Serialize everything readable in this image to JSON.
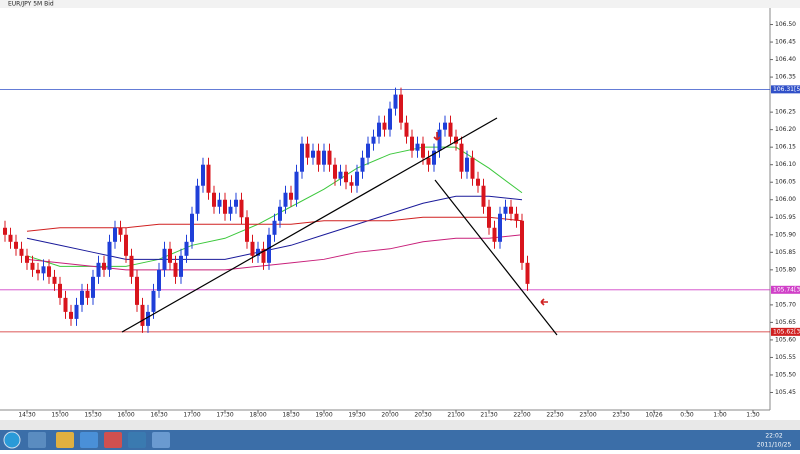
{
  "window_title": "EUR/JPY 5M Bid",
  "clock": {
    "time": "22:02",
    "date": "2011/10/25"
  },
  "chart_data": {
    "type": "candlestick",
    "up_color": "#1f3fd8",
    "down_color": "#d8141c",
    "x": [
      "14:10",
      "14:15",
      "14:20",
      "14:25",
      "14:30",
      "14:35",
      "14:40",
      "14:45",
      "14:50",
      "14:55",
      "15:00",
      "15:05",
      "15:10",
      "15:15",
      "15:20",
      "15:25",
      "15:30",
      "15:35",
      "15:40",
      "15:45",
      "15:50",
      "15:55",
      "16:00",
      "16:05",
      "16:10",
      "16:15",
      "16:20",
      "16:25",
      "16:30",
      "16:35",
      "16:40",
      "16:45",
      "16:50",
      "16:55",
      "17:00",
      "17:05",
      "17:10",
      "17:15",
      "17:20",
      "17:25",
      "17:30",
      "17:35",
      "17:40",
      "17:45",
      "17:50",
      "17:55",
      "18:00",
      "18:05",
      "18:10",
      "18:15",
      "18:20",
      "18:25",
      "18:30",
      "18:35",
      "18:40",
      "18:45",
      "18:50",
      "18:55",
      "19:00",
      "19:05",
      "19:10",
      "19:15",
      "19:20",
      "19:25",
      "19:30",
      "19:35",
      "19:40",
      "19:45",
      "19:50",
      "19:55",
      "20:00",
      "20:05",
      "20:10",
      "20:15",
      "20:20",
      "20:25",
      "20:30",
      "20:35",
      "20:40",
      "20:45",
      "20:50",
      "20:55",
      "21:00",
      "21:05",
      "21:10",
      "21:15",
      "21:20",
      "21:25",
      "21:30",
      "21:35",
      "21:40",
      "21:45",
      "21:50",
      "21:55",
      "22:00",
      "22:05"
    ],
    "open": [
      105.92,
      105.9,
      105.88,
      105.86,
      105.84,
      105.82,
      105.8,
      105.79,
      105.81,
      105.78,
      105.76,
      105.72,
      105.68,
      105.66,
      105.7,
      105.74,
      105.72,
      105.78,
      105.82,
      105.8,
      105.88,
      105.92,
      105.9,
      105.84,
      105.78,
      105.7,
      105.64,
      105.68,
      105.74,
      105.8,
      105.86,
      105.82,
      105.78,
      105.84,
      105.88,
      105.96,
      106.04,
      106.1,
      106.02,
      105.98,
      106.0,
      105.96,
      105.98,
      106.0,
      105.95,
      105.88,
      105.84,
      105.86,
      105.82,
      105.9,
      105.94,
      105.98,
      106.02,
      106.0,
      106.08,
      106.16,
      106.12,
      106.14,
      106.1,
      106.14,
      106.1,
      106.06,
      106.08,
      106.05,
      106.04,
      106.08,
      106.12,
      106.16,
      106.18,
      106.22,
      106.2,
      106.26,
      106.3,
      106.22,
      106.18,
      106.14,
      106.16,
      106.12,
      106.1,
      106.14,
      106.2,
      106.22,
      106.18,
      106.16,
      106.08,
      106.12,
      106.06,
      106.04,
      105.98,
      105.92,
      105.88,
      105.96,
      105.98,
      105.96,
      105.94,
      105.82
    ],
    "high": [
      105.94,
      105.92,
      105.9,
      105.88,
      105.86,
      105.84,
      105.82,
      105.83,
      105.83,
      105.8,
      105.78,
      105.74,
      105.7,
      105.72,
      105.76,
      105.76,
      105.8,
      105.84,
      105.84,
      105.9,
      105.94,
      105.94,
      105.92,
      105.86,
      105.8,
      105.72,
      105.7,
      105.76,
      105.82,
      105.88,
      105.88,
      105.84,
      105.86,
      105.9,
      105.98,
      106.06,
      106.12,
      106.12,
      106.04,
      106.02,
      106.02,
      106.0,
      106.02,
      106.02,
      105.97,
      105.9,
      105.88,
      105.88,
      105.92,
      105.96,
      106.0,
      106.04,
      106.04,
      106.1,
      106.18,
      106.18,
      106.16,
      106.16,
      106.16,
      106.16,
      106.12,
      106.1,
      106.1,
      106.07,
      106.1,
      106.14,
      106.18,
      106.2,
      106.24,
      106.24,
      106.28,
      106.32,
      106.32,
      106.24,
      106.2,
      106.18,
      106.18,
      106.14,
      106.16,
      106.22,
      106.24,
      106.24,
      106.2,
      106.18,
      106.14,
      106.14,
      106.08,
      106.06,
      106.0,
      105.94,
      105.98,
      106.0,
      106.0,
      105.98,
      105.96,
      105.84
    ],
    "low": [
      105.88,
      105.86,
      105.84,
      105.82,
      105.8,
      105.78,
      105.77,
      105.77,
      105.76,
      105.74,
      105.7,
      105.66,
      105.64,
      105.64,
      105.68,
      105.7,
      105.7,
      105.76,
      105.78,
      105.78,
      105.86,
      105.88,
      105.82,
      105.76,
      105.68,
      105.62,
      105.62,
      105.66,
      105.72,
      105.78,
      105.8,
      105.76,
      105.76,
      105.82,
      105.86,
      105.94,
      106.02,
      106.0,
      105.96,
      105.96,
      105.94,
      105.94,
      105.96,
      105.93,
      105.86,
      105.82,
      105.82,
      105.8,
      105.8,
      105.88,
      105.92,
      105.96,
      105.98,
      105.98,
      106.06,
      106.1,
      106.1,
      106.08,
      106.08,
      106.08,
      106.04,
      106.04,
      106.03,
      106.02,
      106.02,
      106.06,
      106.1,
      106.14,
      106.16,
      106.18,
      106.18,
      106.24,
      106.2,
      106.16,
      106.12,
      106.12,
      106.1,
      106.08,
      106.08,
      106.12,
      106.18,
      106.16,
      106.14,
      106.06,
      106.06,
      106.04,
      106.02,
      105.96,
      105.9,
      105.86,
      105.86,
      105.94,
      105.94,
      105.92,
      105.8,
      105.74
    ],
    "close": [
      105.9,
      105.88,
      105.86,
      105.84,
      105.82,
      105.8,
      105.79,
      105.81,
      105.78,
      105.76,
      105.72,
      105.68,
      105.66,
      105.7,
      105.74,
      105.72,
      105.78,
      105.82,
      105.8,
      105.88,
      105.92,
      105.9,
      105.84,
      105.78,
      105.7,
      105.64,
      105.68,
      105.74,
      105.8,
      105.86,
      105.82,
      105.78,
      105.84,
      105.88,
      105.96,
      106.04,
      106.1,
      106.02,
      105.98,
      106.0,
      105.96,
      105.98,
      106.0,
      105.95,
      105.88,
      105.84,
      105.86,
      105.82,
      105.9,
      105.94,
      105.98,
      106.02,
      106.0,
      106.08,
      106.16,
      106.12,
      106.14,
      106.1,
      106.14,
      106.1,
      106.06,
      106.08,
      106.05,
      106.04,
      106.08,
      106.12,
      106.16,
      106.18,
      106.22,
      106.2,
      106.26,
      106.3,
      106.22,
      106.18,
      106.14,
      106.16,
      106.12,
      106.1,
      106.14,
      106.2,
      106.22,
      106.18,
      106.16,
      106.08,
      106.12,
      106.06,
      106.04,
      105.98,
      105.92,
      105.88,
      105.96,
      105.98,
      105.96,
      105.94,
      105.82,
      105.76
    ],
    "indicator_x": [
      "14:30",
      "15:00",
      "15:30",
      "16:00",
      "16:30",
      "17:00",
      "17:30",
      "18:00",
      "18:30",
      "19:00",
      "19:30",
      "20:00",
      "20:30",
      "21:00",
      "21:30",
      "22:00"
    ],
    "indicators": [
      {
        "color": "#3cc83c",
        "values": [
          105.84,
          105.81,
          105.81,
          105.81,
          105.83,
          105.87,
          105.89,
          105.93,
          105.98,
          106.03,
          106.09,
          106.13,
          106.15,
          106.15,
          106.09,
          106.02
        ]
      },
      {
        "color": "#1a1a9a",
        "values": [
          105.89,
          105.87,
          105.85,
          105.83,
          105.83,
          105.83,
          105.83,
          105.85,
          105.87,
          105.9,
          105.93,
          105.96,
          105.99,
          106.01,
          106.01,
          106.0
        ]
      },
      {
        "color": "#d02020",
        "values": [
          105.91,
          105.92,
          105.92,
          105.92,
          105.93,
          105.93,
          105.93,
          105.93,
          105.93,
          105.94,
          105.94,
          105.94,
          105.95,
          105.95,
          105.95,
          105.94
        ]
      },
      {
        "color": "#c8207a",
        "values": [
          105.83,
          105.82,
          105.81,
          105.8,
          105.8,
          105.8,
          105.8,
          105.81,
          105.82,
          105.83,
          105.85,
          105.86,
          105.88,
          105.89,
          105.89,
          105.9
        ]
      }
    ],
    "price_lines": [
      {
        "value": 106.315,
        "label": "106.31[5]",
        "color": "#3050c8"
      },
      {
        "value": 105.743,
        "label": "105.74[3]",
        "color": "#d040c8"
      },
      {
        "value": 105.623,
        "label": "105.62[3]",
        "color": "#d02020"
      }
    ],
    "ylim": [
      105.4,
      106.57
    ],
    "yticks": [
      105.45,
      {
        "value": 105.5,
        "label": "105.50"
      },
      105.55,
      {
        "value": 105.6,
        "label": "105.60"
      },
      105.65,
      {
        "value": 105.7,
        "label": "105.70"
      },
      {
        "value": 105.8,
        "label": "105.80"
      },
      105.85,
      {
        "value": 105.9,
        "label": "105.90"
      },
      105.95,
      {
        "value": 106,
        "label": "106.00"
      },
      106.05,
      {
        "value": 106.1,
        "label": "106.10"
      },
      106.15,
      {
        "value": 106.2,
        "label": "106.20"
      },
      106.25,
      106.35,
      {
        "value": 106.4,
        "label": "106.40"
      },
      106.45,
      {
        "value": 106.5,
        "label": "106.50"
      }
    ],
    "xticks": [
      "14:30",
      "15:00",
      "15:30",
      "16:00",
      "16:30",
      "17:00",
      "17:30",
      "18:00",
      "18:30",
      "19:00",
      "19:30",
      "20:00",
      "20:30",
      "21:00",
      "21:30",
      "22:00",
      "22:30",
      "23:00",
      "23:30",
      "10/26",
      "0:30",
      "1:00",
      "1:30"
    ]
  }
}
